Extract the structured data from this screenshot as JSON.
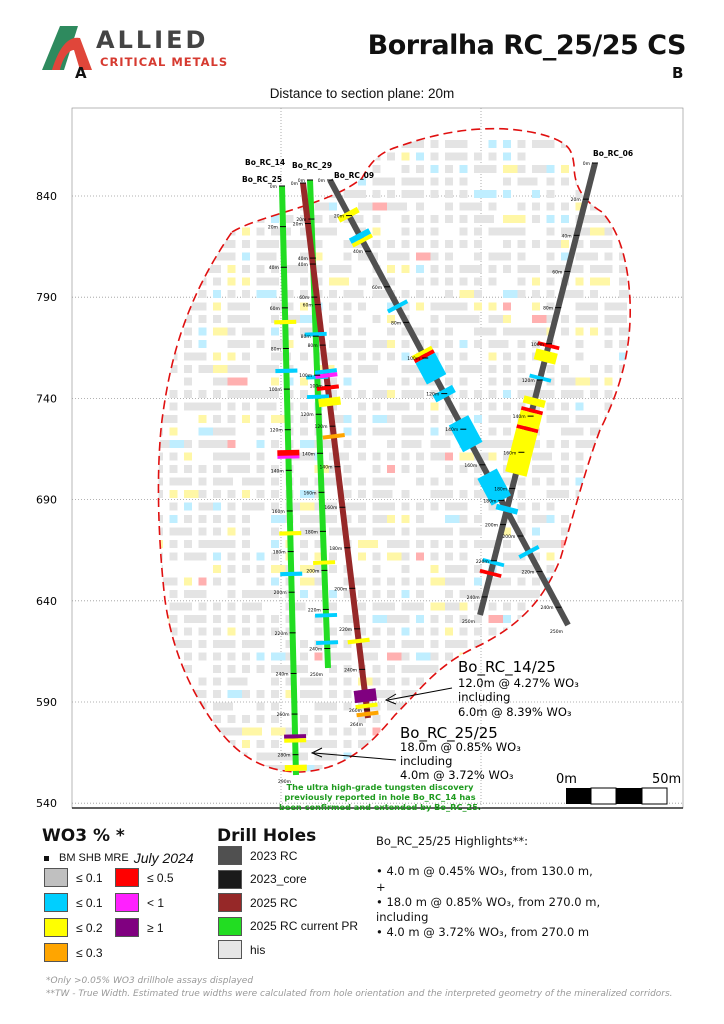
{
  "header": {
    "logo_main": "ALLIED",
    "logo_sub": "CRITICAL METALS",
    "title": "Borralha RC_25/25 CS",
    "section_start": "A",
    "section_end": "B",
    "distance_note": "Distance to section plane: 20m"
  },
  "axis": {
    "elevation_ticks": [
      840,
      790,
      740,
      690,
      640,
      590,
      540
    ]
  },
  "colors": {
    "le_0_1_bm": "#c0c0c0",
    "le_0_1": "#00cfff",
    "le_0_2": "#ffff00",
    "le_0_3": "#ffa500",
    "le_0_5": "#ff0000",
    "lt_1": "#ff20ff",
    "ge_1": "#800080",
    "rc_2023": "#505050",
    "core_2023": "#1a1a1a",
    "rc_2025": "#962828",
    "rc_2025_pr": "#22dd22",
    "his": "#e6e6e6",
    "envelope": "#e01010"
  },
  "holes": [
    {
      "name": "Bo_RC_25",
      "type": "rc_2025_pr",
      "length": 290,
      "labels": [
        "0m",
        "20m",
        "40m",
        "60m",
        "80m",
        "100m",
        "120m",
        "140m",
        "160m",
        "180m",
        "200m",
        "220m",
        "240m",
        "260m",
        "280m"
      ],
      "end_label": "290m"
    },
    {
      "name": "Bo_RC_29",
      "type": "rc_2025_pr",
      "length": 250,
      "labels": [
        "0m",
        "20m",
        "40m",
        "60m",
        "80m",
        "100m",
        "120m",
        "140m",
        "160m",
        "180m",
        "200m",
        "220m",
        "240m"
      ],
      "end_label": "250m"
    },
    {
      "name": "Bo_RC_14",
      "type": "rc_2025",
      "length": 264,
      "labels": [
        "0m",
        "20m",
        "40m",
        "60m",
        "80m",
        "100m",
        "120m",
        "140m",
        "160m",
        "180m",
        "200m",
        "220m",
        "240m",
        "260m"
      ],
      "end_label": "264m"
    },
    {
      "name": "Bo_RC_09",
      "type": "rc_2023",
      "length": 250,
      "labels": [
        "0m",
        "20m",
        "40m",
        "60m",
        "80m",
        "100m",
        "120m",
        "140m",
        "160m",
        "180m",
        "200m",
        "220m",
        "240m"
      ],
      "end_label": "250m"
    },
    {
      "name": "Bo_RC_06",
      "type": "rc_2023",
      "length": 250,
      "labels": [
        "0m",
        "20m",
        "40m",
        "60m",
        "80m",
        "100m",
        "120m",
        "140m",
        "160m",
        "180m",
        "200m",
        "220m",
        "240m"
      ],
      "end_label": "250m"
    }
  ],
  "intervals": [
    {
      "hole": 0,
      "from": 66,
      "to": 68,
      "cls": "le_0_2"
    },
    {
      "hole": 0,
      "from": 90,
      "to": 92,
      "cls": "le_0_1"
    },
    {
      "hole": 0,
      "from": 130,
      "to": 133,
      "cls": "le_0_5"
    },
    {
      "hole": 0,
      "from": 133,
      "to": 134,
      "cls": "lt_1"
    },
    {
      "hole": 0,
      "from": 170,
      "to": 172,
      "cls": "le_0_2"
    },
    {
      "hole": 0,
      "from": 190,
      "to": 192,
      "cls": "le_0_1"
    },
    {
      "hole": 0,
      "from": 270,
      "to": 272,
      "cls": "ge_1"
    },
    {
      "hole": 0,
      "from": 272,
      "to": 274,
      "cls": "le_0_2"
    },
    {
      "hole": 0,
      "from": 285,
      "to": 288,
      "cls": "le_0_2"
    },
    {
      "hole": 1,
      "from": 78,
      "to": 80,
      "cls": "le_0_1"
    },
    {
      "hole": 1,
      "from": 100,
      "to": 102,
      "cls": "le_0_1"
    },
    {
      "hole": 1,
      "from": 110,
      "to": 112,
      "cls": "le_0_1"
    },
    {
      "hole": 1,
      "from": 195,
      "to": 197,
      "cls": "le_0_2"
    },
    {
      "hole": 1,
      "from": 222,
      "to": 224,
      "cls": "le_0_1"
    },
    {
      "hole": 1,
      "from": 236,
      "to": 238,
      "cls": "le_0_1"
    },
    {
      "hole": 2,
      "from": 92,
      "to": 94,
      "cls": "le_0_1"
    },
    {
      "hole": 2,
      "from": 94,
      "to": 96,
      "cls": "lt_1"
    },
    {
      "hole": 2,
      "from": 100,
      "to": 102,
      "cls": "le_0_5"
    },
    {
      "hole": 2,
      "from": 106,
      "to": 110,
      "cls": "le_0_2"
    },
    {
      "hole": 2,
      "from": 124,
      "to": 126,
      "cls": "le_0_3"
    },
    {
      "hole": 2,
      "from": 225,
      "to": 227,
      "cls": "le_0_2"
    },
    {
      "hole": 2,
      "from": 250,
      "to": 256,
      "cls": "ge_1"
    },
    {
      "hole": 2,
      "from": 257,
      "to": 259,
      "cls": "le_0_2"
    },
    {
      "hole": 2,
      "from": 261,
      "to": 263,
      "cls": "le_0_3"
    },
    {
      "hole": 3,
      "from": 18,
      "to": 21,
      "cls": "le_0_2"
    },
    {
      "hole": 3,
      "from": 30,
      "to": 33,
      "cls": "le_0_1"
    },
    {
      "hole": 3,
      "from": 33,
      "to": 35,
      "cls": "le_0_2"
    },
    {
      "hole": 3,
      "from": 70,
      "to": 72,
      "cls": "le_0_1"
    },
    {
      "hole": 3,
      "from": 96,
      "to": 98,
      "cls": "le_0_2"
    },
    {
      "hole": 3,
      "from": 98,
      "to": 100,
      "cls": "le_0_5"
    },
    {
      "hole": 3,
      "from": 100,
      "to": 112,
      "cls": "le_0_1"
    },
    {
      "hole": 3,
      "from": 118,
      "to": 122,
      "cls": "le_0_1"
    },
    {
      "hole": 3,
      "from": 135,
      "to": 150,
      "cls": "le_0_1"
    },
    {
      "hole": 3,
      "from": 165,
      "to": 180,
      "cls": "le_0_1"
    },
    {
      "hole": 3,
      "from": 208,
      "to": 210,
      "cls": "le_0_1"
    },
    {
      "hole": 4,
      "from": 100,
      "to": 102,
      "cls": "le_0_5"
    },
    {
      "hole": 4,
      "from": 104,
      "to": 110,
      "cls": "le_0_2"
    },
    {
      "hole": 4,
      "from": 118,
      "to": 120,
      "cls": "le_0_1"
    },
    {
      "hole": 4,
      "from": 130,
      "to": 134,
      "cls": "le_0_2"
    },
    {
      "hole": 4,
      "from": 136,
      "to": 138,
      "cls": "le_0_5"
    },
    {
      "hole": 4,
      "from": 138,
      "to": 146,
      "cls": "le_0_2"
    },
    {
      "hole": 4,
      "from": 146,
      "to": 148,
      "cls": "le_0_5"
    },
    {
      "hole": 4,
      "from": 148,
      "to": 172,
      "cls": "le_0_2"
    },
    {
      "hole": 4,
      "from": 190,
      "to": 193,
      "cls": "le_0_1"
    },
    {
      "hole": 4,
      "from": 220,
      "to": 222,
      "cls": "le_0_1"
    },
    {
      "hole": 4,
      "from": 226,
      "to": 228,
      "cls": "le_0_5"
    }
  ],
  "callouts": [
    {
      "title": "Bo_RC_14/25",
      "line1": "12.0m @ 4.27% WO₃",
      "line2": "including",
      "line3": "6.0m @ 8.39% WO₃"
    },
    {
      "title": "Bo_RC_25/25",
      "line1": "18.0m @ 0.85% WO₃",
      "line2": "including",
      "line3": "4.0m @ 3.72%  WO₃"
    }
  ],
  "discovery_note": [
    "The ultra high-grade tungsten discovery",
    "previously reported in hole Bo_RC_14 has",
    "been confirmed and extended by Bo_RC_25."
  ],
  "scale_bar": {
    "start": "0m",
    "end": "50m"
  },
  "legend_wo3": {
    "title": "WO3 % *",
    "bm_label": "BM SHB MRE",
    "bm_date": "July 2024",
    "items": [
      {
        "label": "≤ 0.1",
        "color": "#c0c0c0"
      },
      {
        "label": "≤ 0.1",
        "color": "#00cfff"
      },
      {
        "label": "≤ 0.2",
        "color": "#ffff00"
      },
      {
        "label": "≤ 0.3",
        "color": "#ffa500"
      },
      {
        "label": "≤ 0.5",
        "color": "#ff0000"
      },
      {
        "label": "< 1",
        "color": "#ff20ff"
      },
      {
        "label": "≥ 1",
        "color": "#800080"
      }
    ]
  },
  "legend_holes": {
    "title": "Drill Holes",
    "items": [
      {
        "label": "2023 RC",
        "color": "#505050"
      },
      {
        "label": "2023_core",
        "color": "#1a1a1a"
      },
      {
        "label": "2025 RC",
        "color": "#962828"
      },
      {
        "label": "2025 RC current PR",
        "color": "#22dd22"
      },
      {
        "label": "his",
        "color": "#e6e6e6"
      }
    ]
  },
  "highlights": {
    "title": "Bo_RC_25/25 Highlights**:",
    "lines": [
      "• 4.0 m @ 0.45% WO₃, from 130.0 m,",
      "+",
      "• 18.0 m @ 0.85% WO₃, from 270.0 m,",
      "including",
      "• 4.0 m @ 3.72% WO₃, from 270.0 m"
    ]
  },
  "footnotes": [
    "*Only >0.05% WO3 drillhole assays displayed",
    "**TW - True Width. Estimated true widths were calculated from hole orientation and the interpreted geometry of the mineralized corridors."
  ]
}
